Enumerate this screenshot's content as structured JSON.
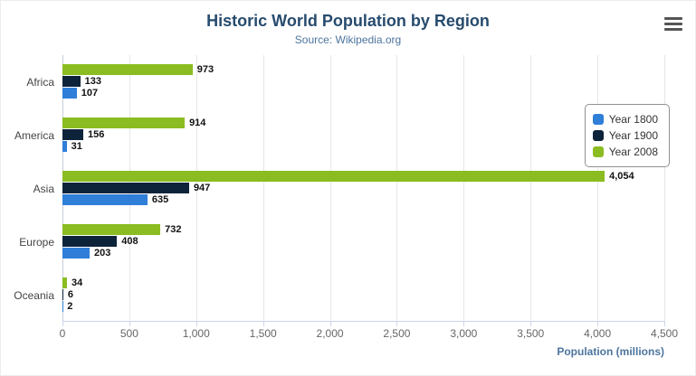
{
  "title": "Historic World Population by Region",
  "subtitle": "Source: Wikipedia.org",
  "menu_icon": "hamburger-menu-icon",
  "colors": {
    "title": "#274b6d",
    "subtitle": "#4d759e",
    "axis_title": "#4d759e",
    "gridline": "#e6e6e6",
    "legend_border": "#909090"
  },
  "chart_data": {
    "type": "bar",
    "title": "Historic World Population by Region",
    "subtitle": "Source: Wikipedia.org",
    "categories": [
      "Africa",
      "America",
      "Asia",
      "Europe",
      "Oceania"
    ],
    "series": [
      {
        "name": "Year 1800",
        "color": "#2f7ed8",
        "values": [
          107,
          31,
          635,
          203,
          2
        ]
      },
      {
        "name": "Year 1900",
        "color": "#0d233a",
        "values": [
          133,
          156,
          947,
          408,
          6
        ]
      },
      {
        "name": "Year 2008",
        "color": "#8bbc21",
        "values": [
          973,
          914,
          4054,
          732,
          34
        ]
      }
    ],
    "bar_display_order_top_to_bottom": [
      "Year 2008",
      "Year 1900",
      "Year 1800"
    ],
    "xlabel": "Population (millions)",
    "ylabel": "",
    "xlim": [
      0,
      4500
    ],
    "xticks": [
      0,
      500,
      1000,
      1500,
      2000,
      2500,
      3000,
      3500,
      4000,
      4500
    ],
    "grid": true,
    "legend_position": "right"
  }
}
